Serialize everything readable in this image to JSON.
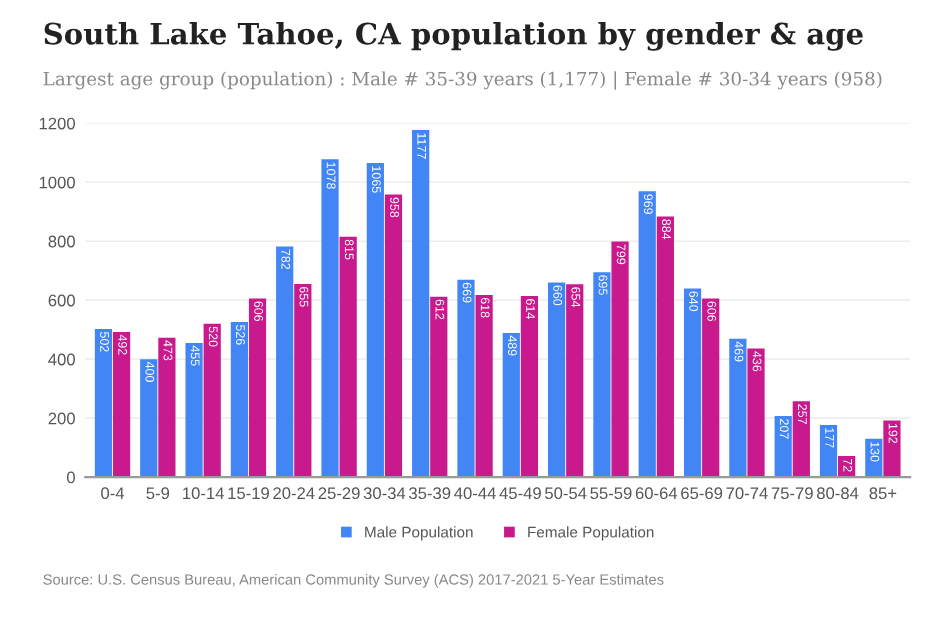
{
  "chart_data": {
    "type": "bar",
    "title": "South Lake Tahoe, CA population by gender & age",
    "subtitle": "Largest age group (population) : Male # 35-39 years (1,177) | Female # 30-34 years (958)",
    "categories": [
      "0-4",
      "5-9",
      "10-14",
      "15-19",
      "20-24",
      "25-29",
      "30-34",
      "35-39",
      "40-44",
      "45-49",
      "50-54",
      "55-59",
      "60-64",
      "65-69",
      "70-74",
      "75-79",
      "80-84",
      "85+"
    ],
    "series": [
      {
        "name": "Male Population",
        "color": "#4285f4",
        "values": [
          502,
          400,
          455,
          526,
          782,
          1078,
          1065,
          1177,
          669,
          489,
          660,
          695,
          969,
          640,
          469,
          207,
          177,
          130
        ]
      },
      {
        "name": "Female Population",
        "color": "#c81a8c",
        "values": [
          492,
          473,
          520,
          606,
          655,
          815,
          958,
          612,
          618,
          614,
          654,
          799,
          884,
          606,
          436,
          257,
          72,
          192
        ]
      }
    ],
    "ylim": [
      0,
      1200
    ],
    "yticks": [
      0,
      200,
      400,
      600,
      800,
      1000,
      1200
    ],
    "grid": "y",
    "legend": "bottom",
    "data_labels": true,
    "annotations": [
      "Source: U.S. Census Bureau, American Community Survey (ACS) 2017-2021 5-Year Estimates"
    ]
  }
}
